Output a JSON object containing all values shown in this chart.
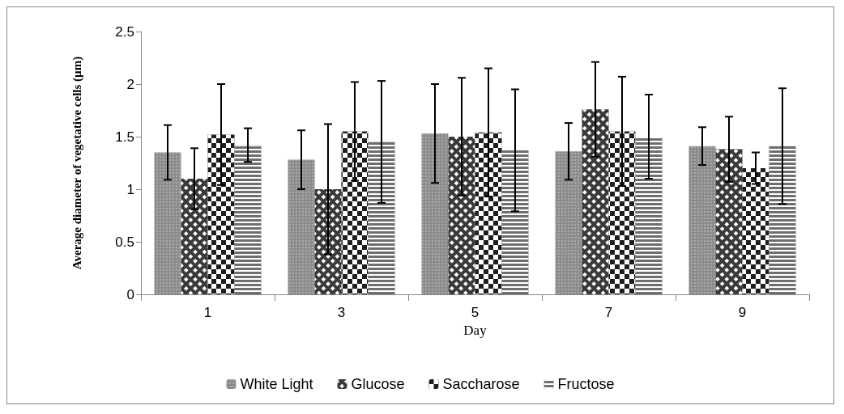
{
  "chart_data": {
    "type": "bar",
    "xlabel": "Day",
    "ylabel": "Average diameter of vegetative cells (µm)",
    "categories": [
      "1",
      "3",
      "5",
      "7",
      "9"
    ],
    "series": [
      {
        "name": "White Light",
        "color": "#8c8c8c",
        "values": [
          1.35,
          1.28,
          1.53,
          1.36,
          1.41
        ],
        "errors": [
          0.26,
          0.28,
          0.47,
          0.27,
          0.18
        ]
      },
      {
        "name": "Glucose",
        "color": "#3a3a3a",
        "values": [
          1.1,
          1.0,
          1.5,
          1.76,
          1.38
        ],
        "errors": [
          0.29,
          0.62,
          0.56,
          0.45,
          0.31
        ]
      },
      {
        "name": "Saccharose",
        "color": "#1e1e1e",
        "values": [
          1.52,
          1.55,
          1.54,
          1.55,
          1.2
        ],
        "errors": [
          0.48,
          0.47,
          0.61,
          0.52,
          0.15
        ]
      },
      {
        "name": "Fructose",
        "color": "#6e6e6e",
        "values": [
          1.42,
          1.45,
          1.37,
          1.5,
          1.41
        ],
        "errors": [
          0.16,
          0.58,
          0.58,
          0.4,
          0.55
        ]
      }
    ],
    "ylim": [
      0,
      2.5
    ],
    "yticks": [
      0,
      0.5,
      1,
      1.5,
      2,
      2.5
    ],
    "grid": false,
    "legend": "bottom"
  }
}
